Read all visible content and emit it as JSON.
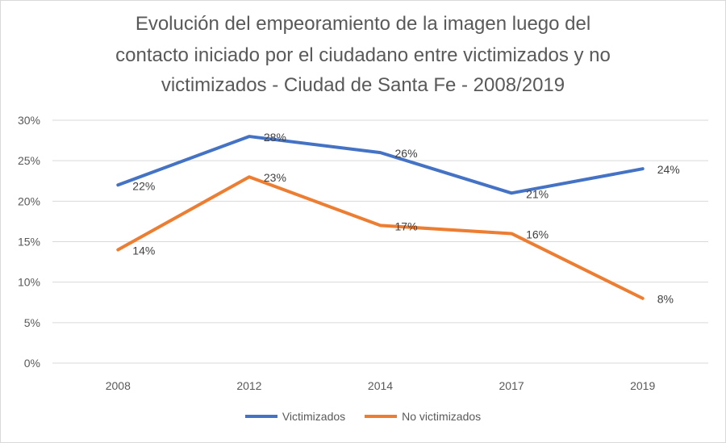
{
  "chart_data": {
    "type": "line",
    "title_lines": [
      "Evolución del empeoramiento de la imagen luego del",
      "contacto iniciado por el ciudadano entre victimizados y no",
      "victimizados - Ciudad de Santa Fe - 2008/2019"
    ],
    "categories": [
      "2008",
      "2012",
      "2014",
      "2017",
      "2019"
    ],
    "series": [
      {
        "name": "Victimizados",
        "color": "#4472C4",
        "values": [
          22,
          28,
          26,
          21,
          24
        ],
        "labels": [
          "22%",
          "28%",
          "26%",
          "21%",
          "24%"
        ]
      },
      {
        "name": "No victimizados",
        "color": "#ED7D31",
        "values": [
          14,
          23,
          17,
          16,
          8
        ],
        "labels": [
          "14%",
          "23%",
          "17%",
          "16%",
          "8%"
        ]
      }
    ],
    "ylim": [
      0,
      30
    ],
    "yticks": [
      "0%",
      "5%",
      "10%",
      "15%",
      "20%",
      "25%",
      "30%"
    ],
    "grid": true,
    "legend_position": "bottom"
  }
}
